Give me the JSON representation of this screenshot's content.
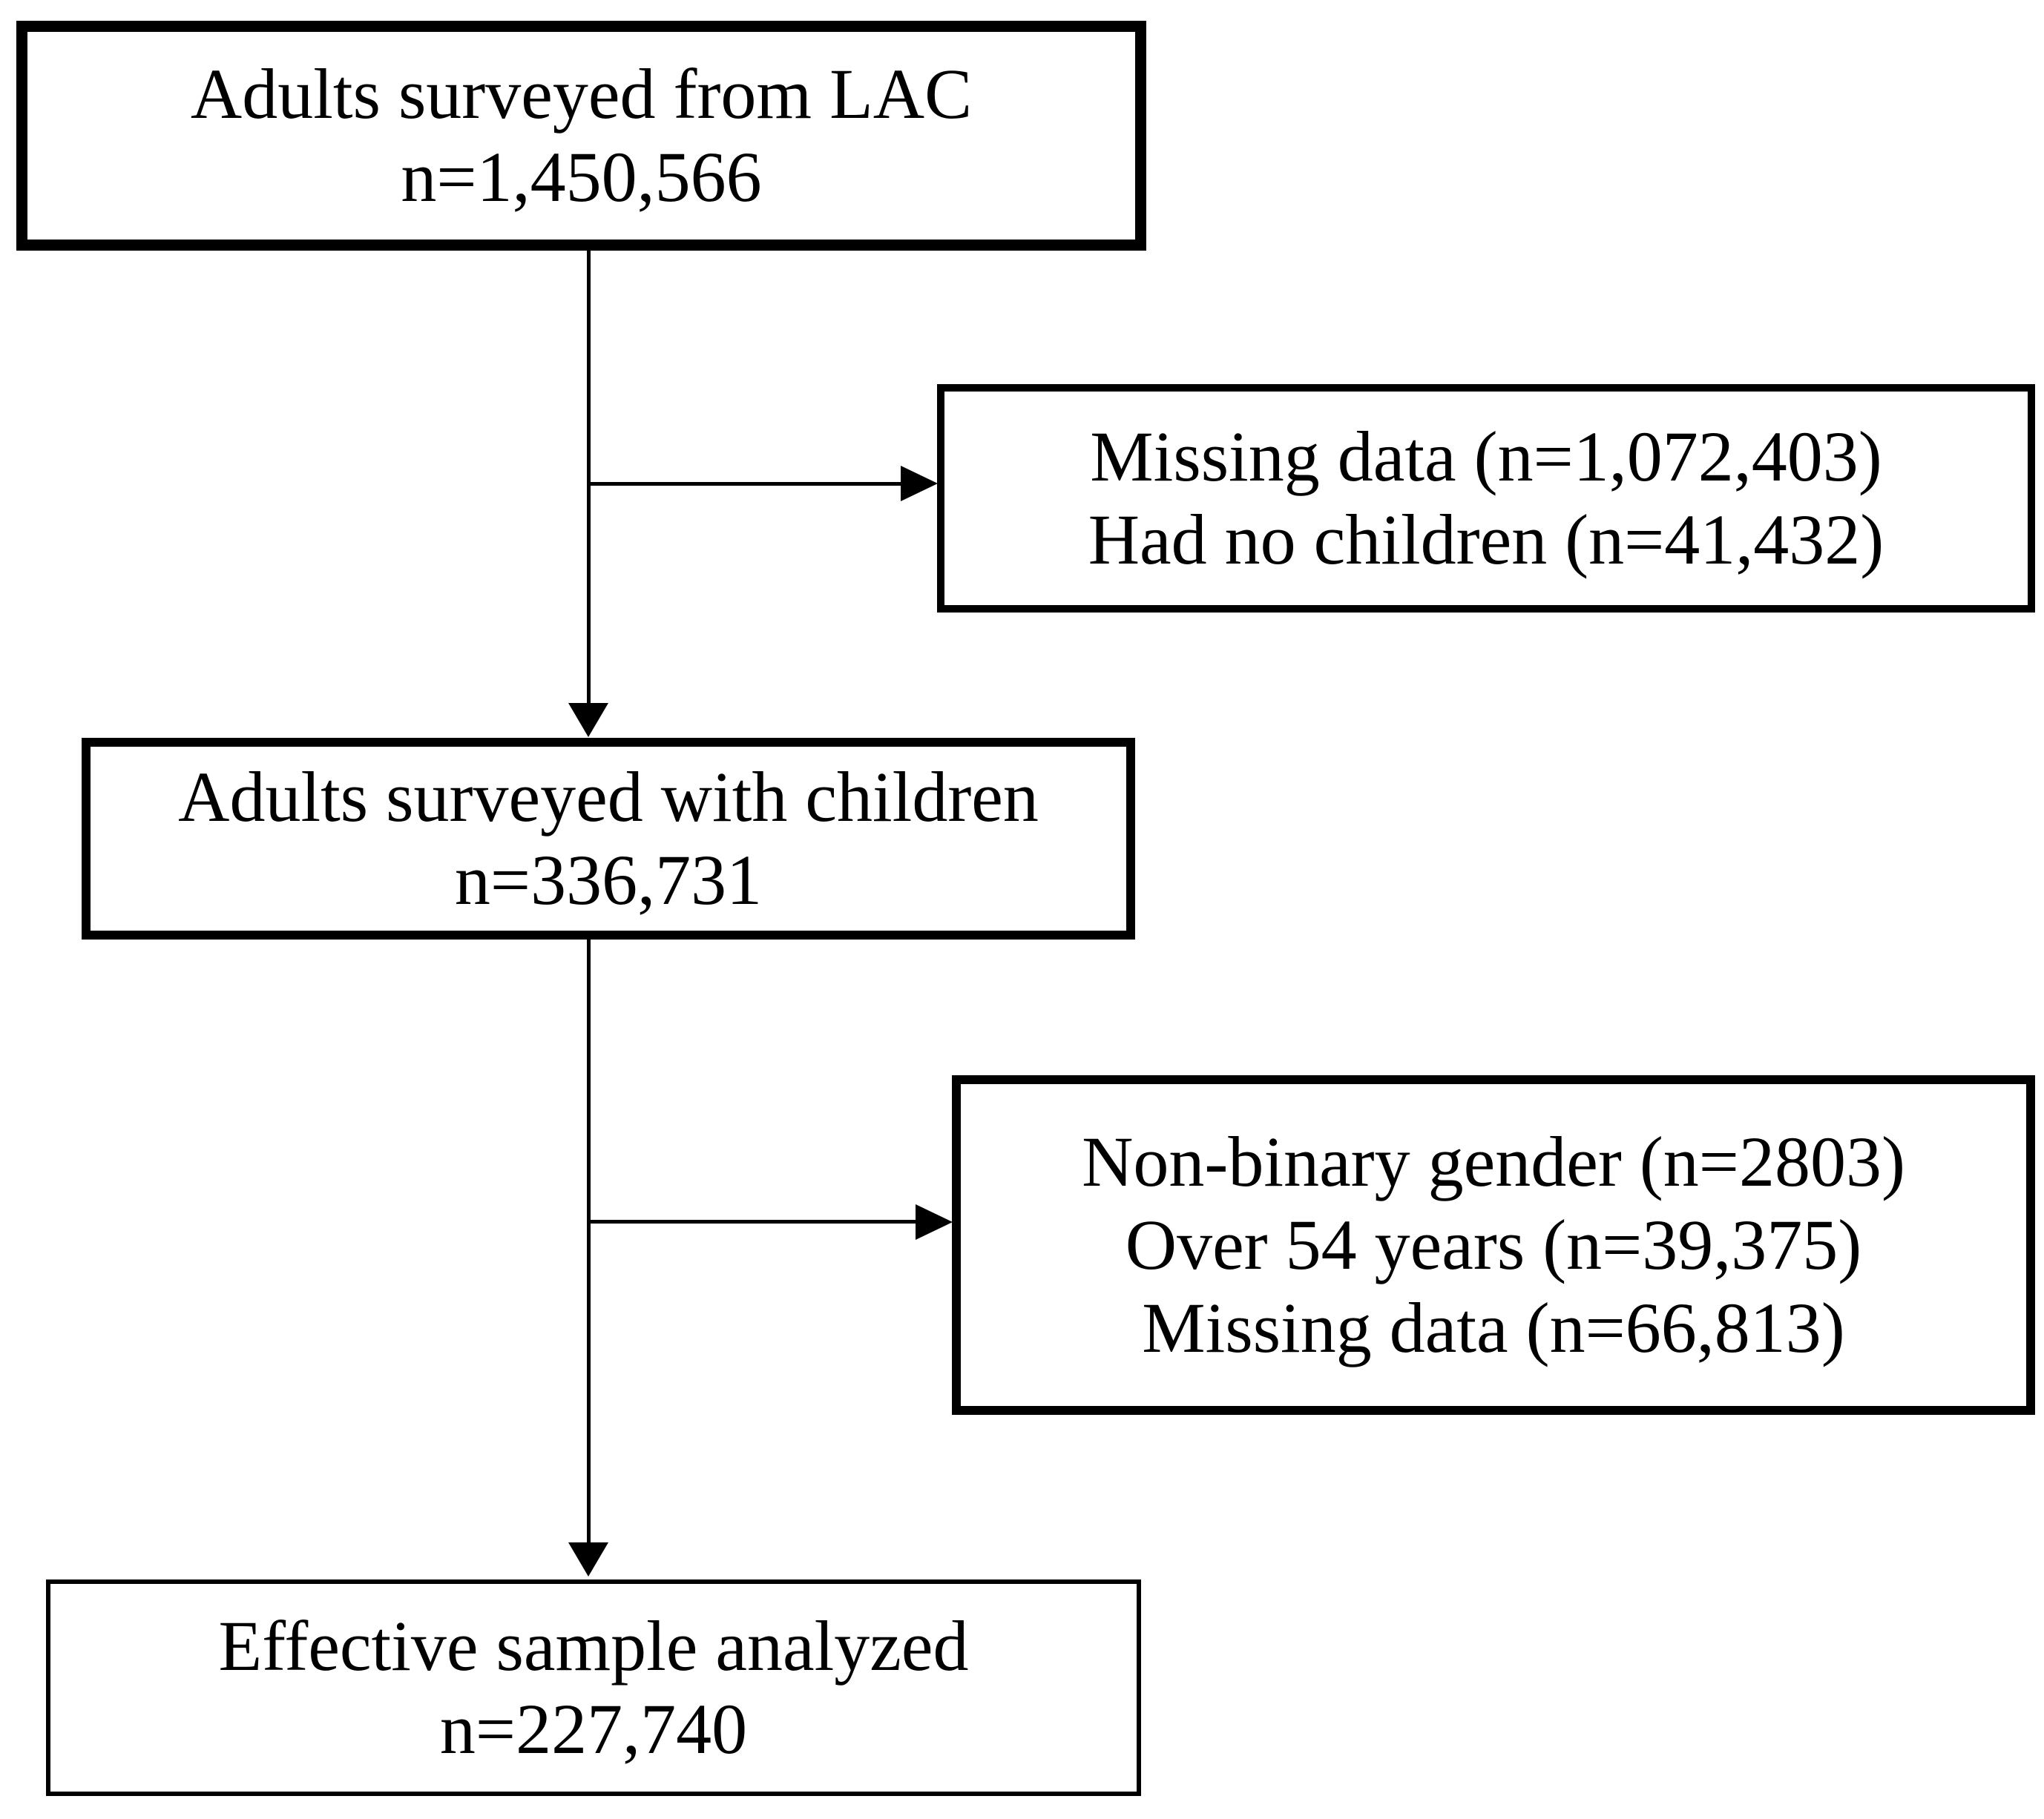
{
  "diagram": {
    "type": "flowchart",
    "boxes": {
      "top": {
        "lines": [
          "Adults surveyed from LAC",
          "n=1,450,566"
        ]
      },
      "exclusion1": {
        "lines": [
          "Missing data (n=1,072,403)",
          "Had no children (n=41,432)"
        ]
      },
      "middle": {
        "lines": [
          "Adults surveyed with children",
          "n=336,731"
        ]
      },
      "exclusion2": {
        "lines": [
          "Non-binary gender (n=2803)",
          "Over 54 years (n=39,375)",
          "Missing data (n=66,813)"
        ]
      },
      "bottom": {
        "lines": [
          "Effective sample analyzed",
          "n=227,740"
        ]
      }
    },
    "edges": [
      {
        "from": "top",
        "to": "middle",
        "type": "arrow-down"
      },
      {
        "from": "top-to-middle-connector",
        "to": "exclusion1",
        "type": "arrow-right"
      },
      {
        "from": "middle",
        "to": "bottom",
        "type": "arrow-down"
      },
      {
        "from": "middle-to-bottom-connector",
        "to": "exclusion2",
        "type": "arrow-right"
      }
    ],
    "colors": {
      "line": "#000000",
      "text": "#000000",
      "background": "#ffffff"
    }
  }
}
